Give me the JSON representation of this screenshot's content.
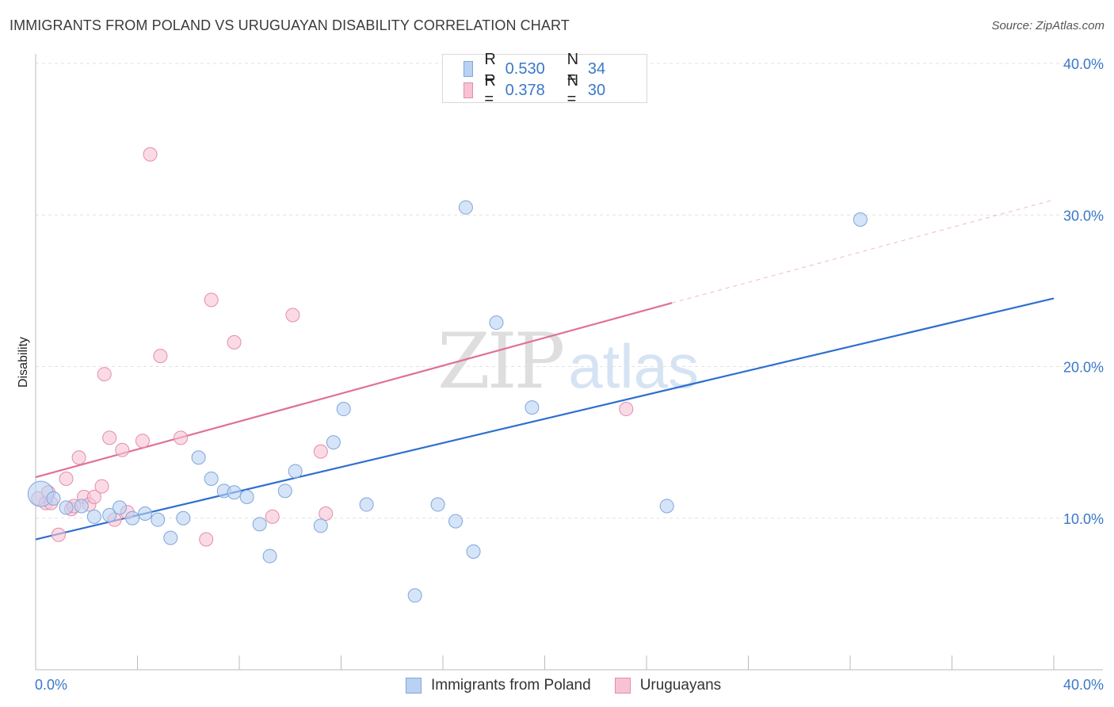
{
  "header": {
    "title": "IMMIGRANTS FROM POLAND VS URUGUAYAN DISABILITY CORRELATION CHART",
    "source": "Source: ZipAtlas.com"
  },
  "watermark": {
    "zip": "ZIP",
    "atlas": "atlas"
  },
  "legend_top": [
    {
      "r_label": "R =",
      "r_value": "0.530",
      "n_label": "N =",
      "n_value": "34"
    },
    {
      "r_label": "R =",
      "r_value": "0.378",
      "n_label": "N =",
      "n_value": "30"
    }
  ],
  "legend_bottom": [
    {
      "label": "Immigrants from Poland"
    },
    {
      "label": "Uruguayans"
    }
  ],
  "colors": {
    "blue_fill": "#b9d2f2",
    "blue_stroke": "#7fa6dc",
    "blue_line": "#2f6fcf",
    "pink_fill": "#f7c3d3",
    "pink_stroke": "#e48ca9",
    "pink_line": "#e07096",
    "tick_text": "#3a78c9",
    "grid": "#e2e2e2"
  },
  "chart_data": {
    "type": "scatter",
    "title": "IMMIGRANTS FROM POLAND VS URUGUAYAN DISABILITY CORRELATION CHART",
    "xlabel": "",
    "ylabel": "Disability",
    "xlim": [
      0,
      40
    ],
    "ylim": [
      0,
      40
    ],
    "x_tick_labels": [
      "0.0%",
      "40.0%"
    ],
    "y_ticks": [
      10,
      20,
      30,
      40
    ],
    "y_tick_labels": [
      "10.0%",
      "20.0%",
      "30.0%",
      "40.0%"
    ],
    "grid": true,
    "legend_placement": "top-center",
    "series": [
      {
        "name": "Immigrants from Poland",
        "color": "#b9d2f2",
        "r": 0.53,
        "n": 34,
        "trend": {
          "x0": 0,
          "y0": 8.6,
          "x1": 40,
          "y1": 24.5
        },
        "points": [
          [
            0.2,
            11.6
          ],
          [
            0.7,
            11.3
          ],
          [
            1.2,
            10.7
          ],
          [
            1.8,
            10.8
          ],
          [
            2.3,
            10.1
          ],
          [
            2.9,
            10.2
          ],
          [
            3.3,
            10.7
          ],
          [
            3.8,
            10.0
          ],
          [
            4.3,
            10.3
          ],
          [
            4.8,
            9.9
          ],
          [
            5.3,
            8.7
          ],
          [
            5.8,
            10.0
          ],
          [
            6.4,
            14.0
          ],
          [
            6.9,
            12.6
          ],
          [
            7.4,
            11.8
          ],
          [
            7.8,
            11.7
          ],
          [
            8.3,
            11.4
          ],
          [
            8.8,
            9.6
          ],
          [
            9.2,
            7.5
          ],
          [
            9.8,
            11.8
          ],
          [
            10.2,
            13.1
          ],
          [
            11.2,
            9.5
          ],
          [
            11.7,
            15.0
          ],
          [
            12.1,
            17.2
          ],
          [
            13.0,
            10.9
          ],
          [
            14.9,
            4.9
          ],
          [
            15.8,
            10.9
          ],
          [
            16.5,
            9.8
          ],
          [
            16.9,
            30.5
          ],
          [
            17.2,
            7.8
          ],
          [
            18.1,
            22.9
          ],
          [
            19.5,
            17.3
          ],
          [
            24.8,
            10.8
          ],
          [
            32.4,
            29.7
          ]
        ]
      },
      {
        "name": "Uruguayans",
        "color": "#f7c3d3",
        "r": 0.378,
        "n": 30,
        "trend": {
          "x0": 0,
          "y0": 12.7,
          "x1": 25,
          "y1": 24.2
        },
        "trend_dashed": {
          "x0": 25,
          "y0": 24.2,
          "x1": 40,
          "y1": 31.0
        },
        "points": [
          [
            0.1,
            11.3
          ],
          [
            0.4,
            11.0
          ],
          [
            0.6,
            11.0
          ],
          [
            0.9,
            8.9
          ],
          [
            1.2,
            12.6
          ],
          [
            1.4,
            10.6
          ],
          [
            1.7,
            14.0
          ],
          [
            1.9,
            11.4
          ],
          [
            2.1,
            10.9
          ],
          [
            2.3,
            11.4
          ],
          [
            2.6,
            12.1
          ],
          [
            2.7,
            19.5
          ],
          [
            2.9,
            15.3
          ],
          [
            3.1,
            9.9
          ],
          [
            3.4,
            14.5
          ],
          [
            3.6,
            10.4
          ],
          [
            4.2,
            15.1
          ],
          [
            4.5,
            34.0
          ],
          [
            4.9,
            20.7
          ],
          [
            5.7,
            15.3
          ],
          [
            6.7,
            8.6
          ],
          [
            6.9,
            24.4
          ],
          [
            7.8,
            21.6
          ],
          [
            9.3,
            10.1
          ],
          [
            10.1,
            23.4
          ],
          [
            11.2,
            14.4
          ],
          [
            11.4,
            10.3
          ],
          [
            23.2,
            17.2
          ],
          [
            0.5,
            11.7
          ],
          [
            1.5,
            10.8
          ]
        ]
      }
    ]
  }
}
